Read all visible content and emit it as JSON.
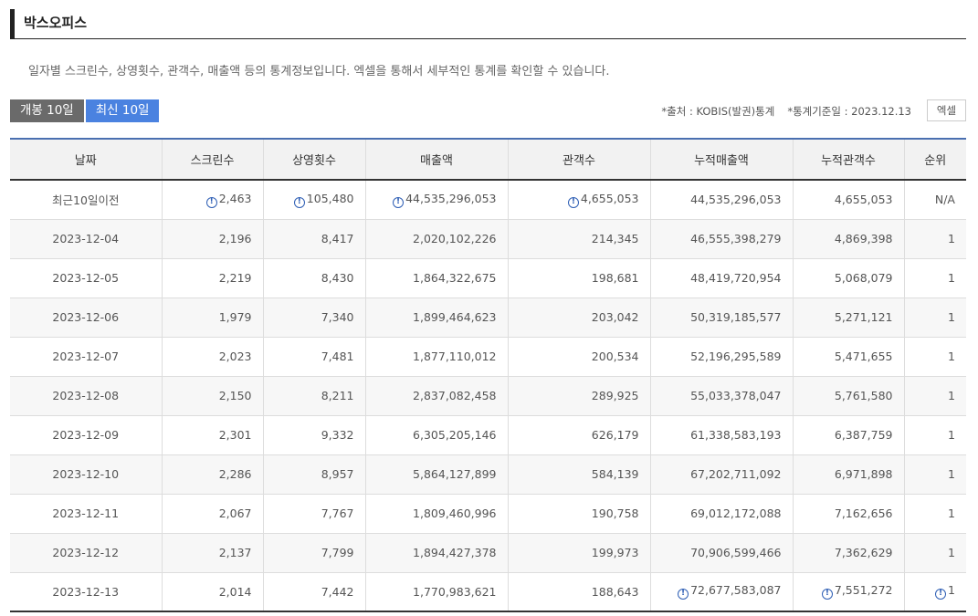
{
  "section": {
    "title": "박스오피스"
  },
  "description": "일자별 스크린수, 상영횟수, 관객수, 매출액 등의 통계정보입니다. 엑셀을 통해서 세부적인 통계를 확인할 수 있습니다.",
  "tabs": [
    {
      "label": "개봉 10일",
      "active": false
    },
    {
      "label": "최신 10일",
      "active": true
    }
  ],
  "meta": {
    "source": "*출처 : KOBIS(발권)통계",
    "base_date": "*통계기준일 : 2023.12.13"
  },
  "excel_label": "엑셀",
  "colors": {
    "tab_active": "#4a82e0",
    "tab_inactive": "#6a6a6a",
    "icon": "#2f5fb5"
  },
  "info_icon_name": "info-circle-icon",
  "table": {
    "headers": [
      "날짜",
      "스크린수",
      "상영횟수",
      "매출액",
      "관객수",
      "누적매출액",
      "누적관객수",
      "순위"
    ],
    "rows": [
      [
        "최근10일이전",
        "2,463",
        "105,480",
        "44,535,296,053",
        "4,655,053",
        "44,535,296,053",
        "4,655,053",
        "N/A"
      ],
      [
        "2023-12-04",
        "2,196",
        "8,417",
        "2,020,102,226",
        "214,345",
        "46,555,398,279",
        "4,869,398",
        "1"
      ],
      [
        "2023-12-05",
        "2,219",
        "8,430",
        "1,864,322,675",
        "198,681",
        "48,419,720,954",
        "5,068,079",
        "1"
      ],
      [
        "2023-12-06",
        "1,979",
        "7,340",
        "1,899,464,623",
        "203,042",
        "50,319,185,577",
        "5,271,121",
        "1"
      ],
      [
        "2023-12-07",
        "2,023",
        "7,481",
        "1,877,110,012",
        "200,534",
        "52,196,295,589",
        "5,471,655",
        "1"
      ],
      [
        "2023-12-08",
        "2,150",
        "8,211",
        "2,837,082,458",
        "289,925",
        "55,033,378,047",
        "5,761,580",
        "1"
      ],
      [
        "2023-12-09",
        "2,301",
        "9,332",
        "6,305,205,146",
        "626,179",
        "61,338,583,193",
        "6,387,759",
        "1"
      ],
      [
        "2023-12-10",
        "2,286",
        "8,957",
        "5,864,127,899",
        "584,139",
        "67,202,711,092",
        "6,971,898",
        "1"
      ],
      [
        "2023-12-11",
        "2,067",
        "7,767",
        "1,809,460,996",
        "190,758",
        "69,012,172,088",
        "7,162,656",
        "1"
      ],
      [
        "2023-12-12",
        "2,137",
        "7,799",
        "1,894,427,378",
        "199,973",
        "70,906,599,466",
        "7,362,629",
        "1"
      ],
      [
        "2023-12-13",
        "2,014",
        "7,442",
        "1,770,983,621",
        "188,643",
        "72,677,583,087",
        "7,551,272",
        "1"
      ]
    ],
    "icon_cells": [
      [
        0,
        1
      ],
      [
        0,
        2
      ],
      [
        0,
        3
      ],
      [
        0,
        4
      ],
      [
        10,
        5
      ],
      [
        10,
        6
      ],
      [
        10,
        7
      ]
    ]
  }
}
